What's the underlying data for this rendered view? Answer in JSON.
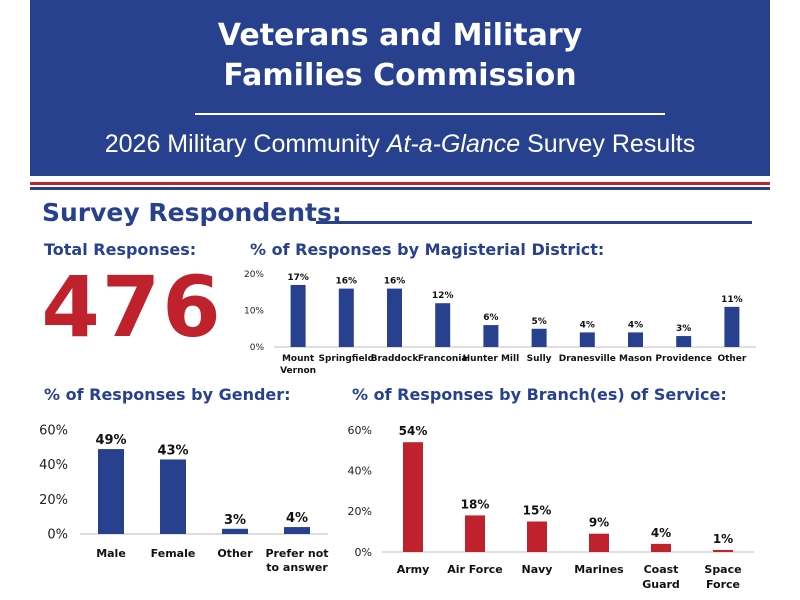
{
  "header": {
    "title_line1": "Veterans and Military",
    "title_line2": "Families Commission",
    "subtitle_pre": "2026 Military Community ",
    "subtitle_em": "At-a-Glance",
    "subtitle_post": " Survey Results"
  },
  "section": {
    "title": "Survey Respondents:"
  },
  "total": {
    "label": "Total Responses:",
    "value": "476"
  },
  "colors": {
    "blue": "#27418f",
    "red": "#c0222d"
  },
  "chart_data": [
    {
      "id": "district",
      "type": "bar",
      "title": "% of Responses by Magisterial District:",
      "categories": [
        [
          "Mount",
          "Vernon"
        ],
        [
          "Springfield"
        ],
        [
          "Braddock"
        ],
        [
          "Franconia"
        ],
        [
          "Hunter Mill"
        ],
        [
          "Sully"
        ],
        [
          "Dranesville"
        ],
        [
          "Mason"
        ],
        [
          "Providence"
        ],
        [
          "Other"
        ]
      ],
      "values": [
        17,
        16,
        16,
        12,
        6,
        5,
        4,
        4,
        3,
        11
      ],
      "data_labels": [
        "17%",
        "16%",
        "16%",
        "12%",
        "6%",
        "5%",
        "4%",
        "4%",
        "3%",
        "11%"
      ],
      "ylim": [
        0,
        20
      ],
      "yticks": [
        0,
        10,
        20
      ],
      "ytick_labels": [
        "0%",
        "10%",
        "20%"
      ],
      "color": "#27418f"
    },
    {
      "id": "gender",
      "type": "bar",
      "title": "% of Responses by Gender:",
      "categories": [
        [
          "Male"
        ],
        [
          "Female"
        ],
        [
          "Other"
        ],
        [
          "Prefer not",
          "to answer"
        ]
      ],
      "values": [
        49,
        43,
        3,
        4
      ],
      "data_labels": [
        "49%",
        "43%",
        "3%",
        "4%"
      ],
      "ylim": [
        0,
        60
      ],
      "yticks": [
        0,
        20,
        40,
        60
      ],
      "ytick_labels": [
        "0%",
        "20%",
        "40%",
        "60%"
      ],
      "color": "#27418f"
    },
    {
      "id": "branch",
      "type": "bar",
      "title": "% of Responses by Branch(es) of Service:",
      "categories": [
        [
          "Army"
        ],
        [
          "Air Force"
        ],
        [
          "Navy"
        ],
        [
          "Marines"
        ],
        [
          "Coast",
          "Guard"
        ],
        [
          "Space",
          "Force"
        ]
      ],
      "values": [
        54,
        18,
        15,
        9,
        4,
        1
      ],
      "data_labels": [
        "54%",
        "18%",
        "15%",
        "9%",
        "4%",
        "1%"
      ],
      "ylim": [
        0,
        60
      ],
      "yticks": [
        0,
        20,
        40,
        60
      ],
      "ytick_labels": [
        "0%",
        "20%",
        "40%",
        "60%"
      ],
      "color": "#c0222d"
    }
  ]
}
